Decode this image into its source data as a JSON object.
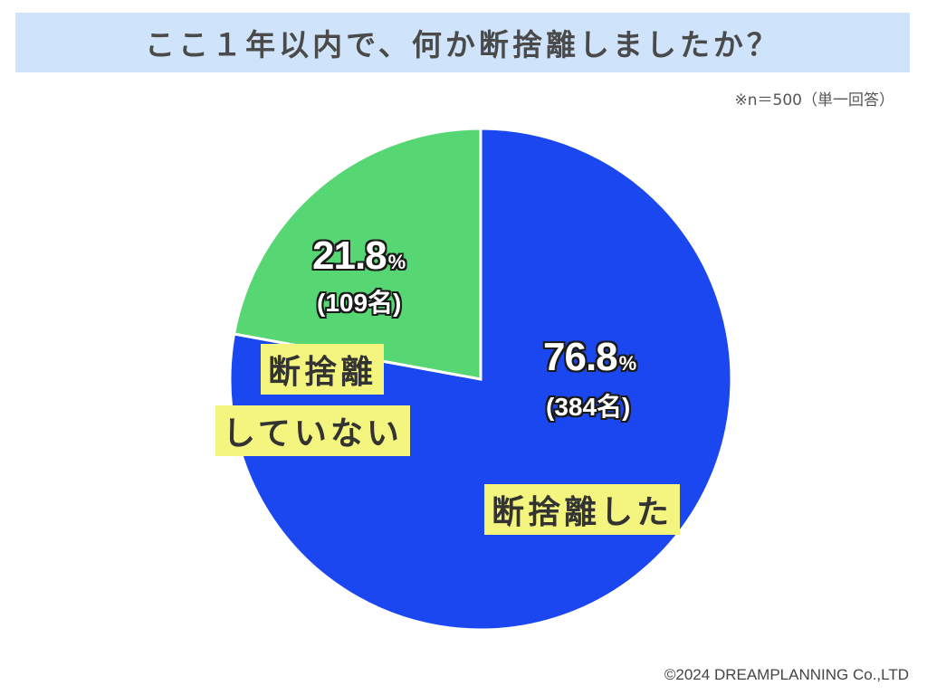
{
  "title": "ここ１年以内で、何か断捨離しましたか？",
  "note": "※n＝500（単一回答）",
  "credit": "©2024 DREAMPLANNING Co.,LTD",
  "chart_data": {
    "type": "pie",
    "title": "ここ１年以内で、何か断捨離しましたか？",
    "slices": [
      {
        "label": "断捨離した",
        "percent": 76.8,
        "count": 384,
        "color": "#1a47f0"
      },
      {
        "label": "断捨離していない",
        "percent": 21.8,
        "count": 109,
        "color": "#57d674"
      }
    ]
  },
  "labels": {
    "did": {
      "percent": "76.8",
      "unit": "%",
      "count": "(384名)",
      "tag": "断捨離した"
    },
    "not": {
      "percent": "21.8",
      "unit": "%",
      "count": "(109名)",
      "tag_line1": "断捨離",
      "tag_line2": "していない"
    }
  }
}
